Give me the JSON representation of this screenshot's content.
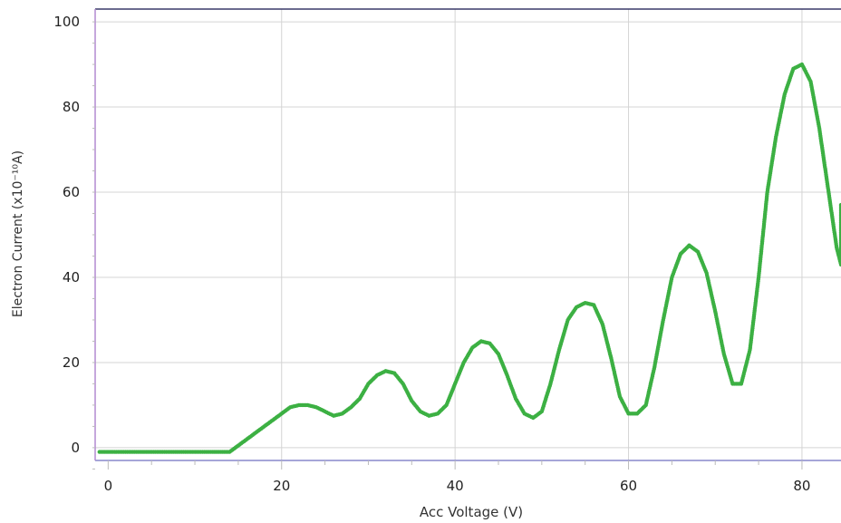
{
  "chart_data": {
    "type": "scatter",
    "title": "",
    "xlabel": "Acc Voltage (V)",
    "ylabel": "Electron Current (x10⁻¹⁰A)",
    "xlim": [
      -1.5,
      84.5
    ],
    "ylim": [
      -3,
      103
    ],
    "x_ticks": [
      0,
      20,
      40,
      60,
      80
    ],
    "x_tick_labels": [
      "0",
      "20",
      "40",
      "60",
      "80"
    ],
    "y_ticks": [
      0,
      20,
      40,
      60,
      80,
      100
    ],
    "y_tick_labels": [
      "0",
      "20",
      "40",
      "60",
      "80",
      "100"
    ],
    "grid": true,
    "legend": "none",
    "marker_color": "#3cb043",
    "series": [
      {
        "x": [
          -1,
          2,
          5,
          8,
          10,
          12,
          13,
          14,
          15,
          16,
          17,
          18,
          19,
          20,
          21,
          22,
          23,
          24,
          25,
          26,
          27,
          28,
          29,
          30,
          31,
          32,
          33,
          34,
          35,
          36,
          37,
          38,
          39,
          40,
          41,
          42,
          43,
          44,
          45,
          46,
          47,
          48,
          49,
          50,
          51,
          52,
          53,
          54,
          55,
          56,
          57,
          58,
          59,
          60,
          61,
          62,
          63,
          64,
          65,
          66,
          67,
          68,
          69,
          70,
          71,
          72,
          73,
          74,
          75,
          76,
          77,
          78,
          79,
          80,
          81,
          82,
          83,
          84,
          84.5,
          84.5
        ],
        "y": [
          -1,
          -1,
          -1,
          -1,
          -1,
          -1,
          -1,
          -1,
          0.5,
          2,
          3.5,
          5,
          6.5,
          8,
          9.5,
          10,
          10,
          9.5,
          8.5,
          7.5,
          8,
          9.5,
          11.5,
          15,
          17,
          18,
          17.5,
          15,
          11,
          8.5,
          7.5,
          8,
          10,
          15,
          20,
          23.5,
          25,
          24.5,
          22,
          17,
          11.5,
          8,
          7,
          8.5,
          15,
          23,
          30,
          33,
          34,
          33.5,
          29,
          21,
          12,
          8,
          8,
          10,
          19,
          30,
          40,
          45.5,
          47.5,
          46,
          41,
          32,
          22,
          15,
          15,
          23,
          40,
          60,
          73,
          83,
          89,
          90,
          86,
          75,
          61,
          47,
          43,
          57
        ]
      }
    ]
  }
}
